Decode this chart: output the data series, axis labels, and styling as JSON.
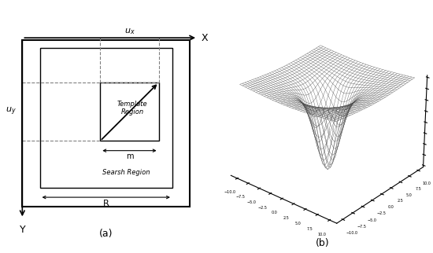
{
  "fig_width": 5.5,
  "fig_height": 3.22,
  "dpi": 100,
  "bg_color": "#ffffff",
  "panel_a": {
    "label": "(a)",
    "axis_x_label": "X",
    "axis_y_label": "Y",
    "ux_label": "$u_x$",
    "uy_label": "$u_y$",
    "m_label": "m",
    "template_label": "Template\nRegion",
    "search_label": "Searsh Region",
    "R_label": "R"
  },
  "panel_b": {
    "label": "(b)",
    "elevation": 28,
    "azimuth": -50,
    "lw": 0.25,
    "color": "#444444"
  }
}
